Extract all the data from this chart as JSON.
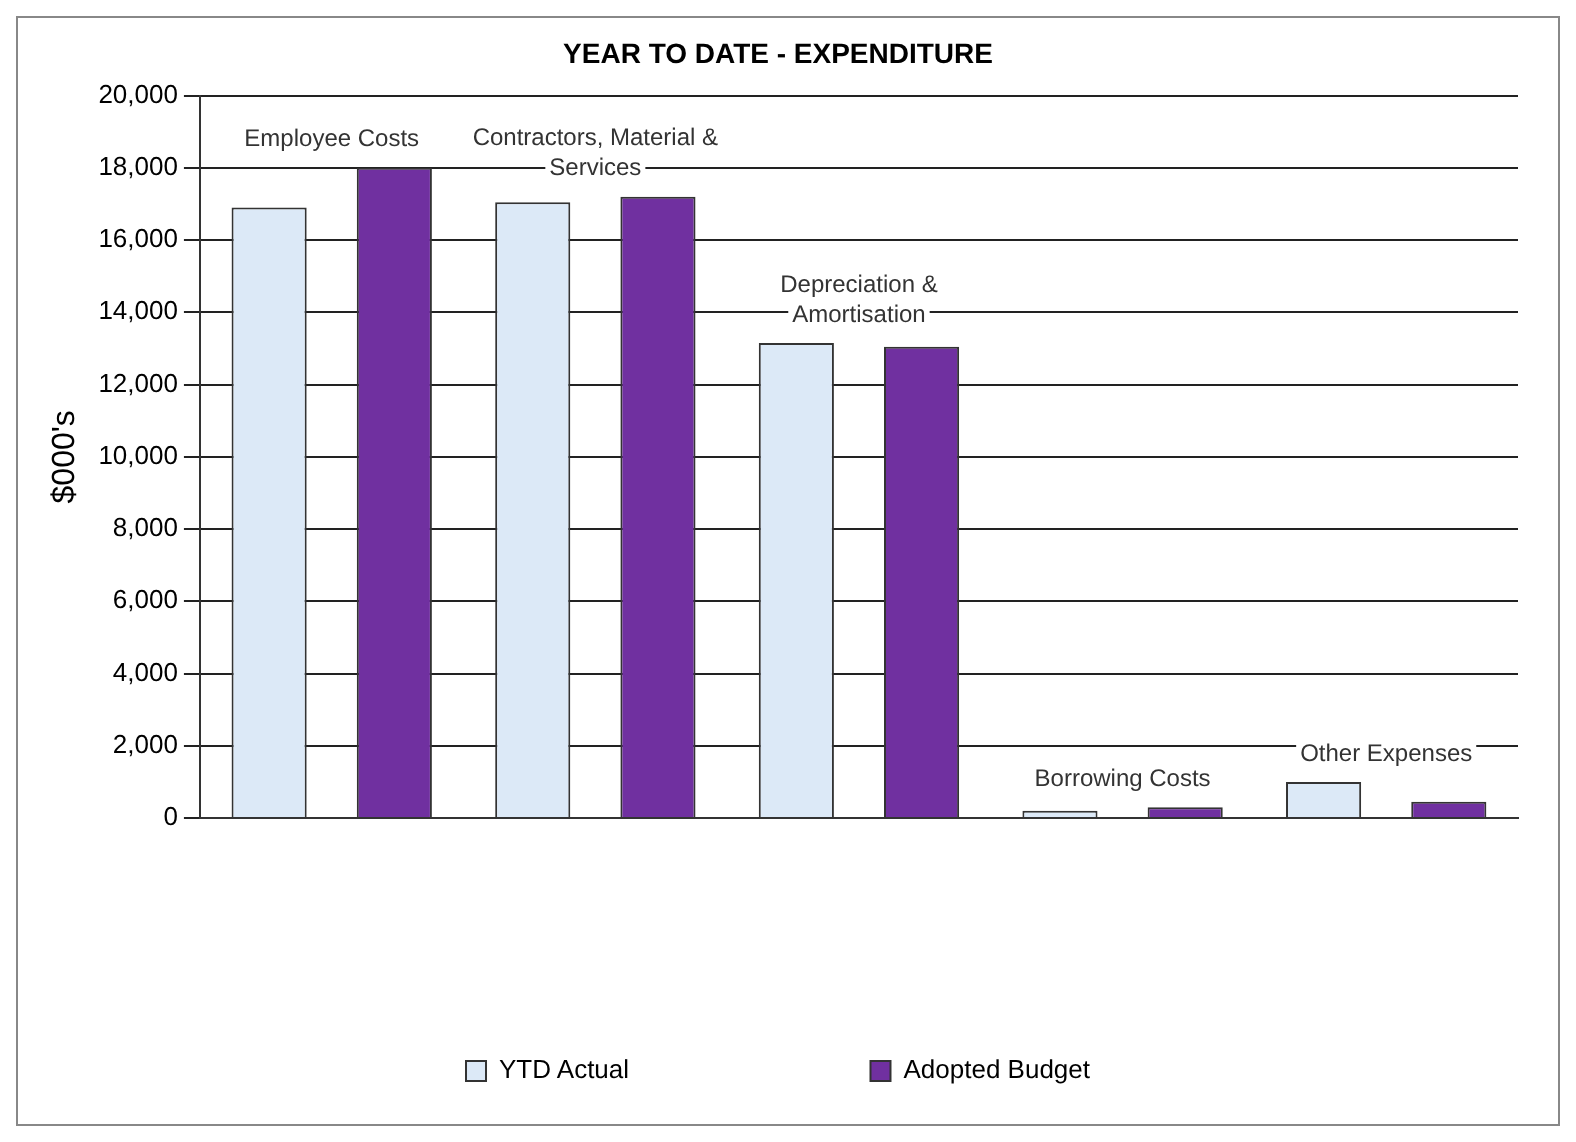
{
  "chart_data": {
    "type": "bar",
    "title": "YEAR TO DATE - EXPENDITURE",
    "ylabel": "$000's",
    "categories": [
      "Employee Costs",
      "Contractors, Material & Services",
      "Depreciation & Amortisation",
      "Borrowing Costs",
      "Other Expenses"
    ],
    "series": [
      {
        "name": "YTD Actual",
        "color": "#dce9f7",
        "values": [
          16900,
          17050,
          13150,
          200,
          1000
        ]
      },
      {
        "name": "Adopted Budget",
        "color": "#7030a0",
        "values": [
          18000,
          17200,
          13050,
          300,
          450
        ]
      }
    ],
    "ylim": [
      0,
      20000
    ],
    "yticks": [
      0,
      {
        "value": 2000,
        "label": "2,000"
      },
      {
        "value": 4000,
        "label": "4,000"
      },
      {
        "value": 6000,
        "label": "6,000"
      },
      {
        "value": 8000,
        "label": "8,000"
      },
      {
        "value": 10000,
        "label": "10,000"
      },
      {
        "value": 12000,
        "label": "12,000"
      },
      {
        "value": 14000,
        "label": "14,000"
      },
      {
        "value": 16000,
        "label": "16,000"
      },
      {
        "value": 18000,
        "label": "18,000"
      },
      {
        "value": 20000,
        "label": "20,000"
      }
    ],
    "grid": "y",
    "legend": "bottom"
  }
}
